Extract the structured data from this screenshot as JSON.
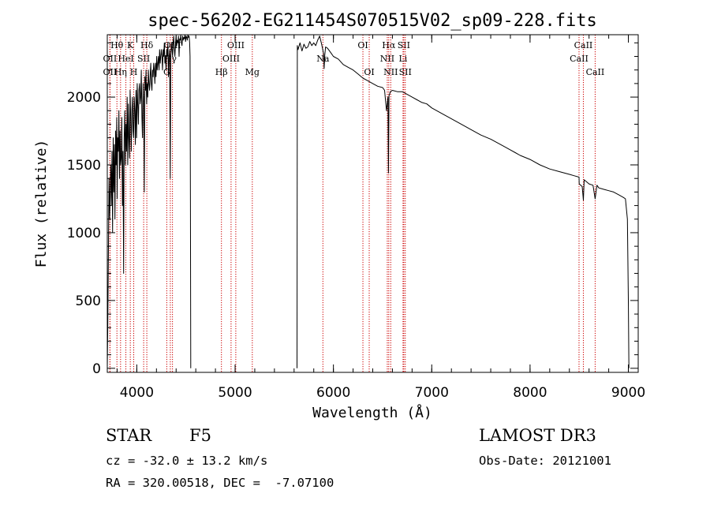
{
  "chart_data": {
    "type": "line",
    "title": "spec-56202-EG211454S070515V02_sp09-228.fits",
    "xlabel": "Wavelength (Å)",
    "ylabel": "Flux (relative)",
    "xlim": [
      3700,
      9100
    ],
    "ylim": [
      -30,
      2460
    ],
    "x_ticks": [
      4000,
      5000,
      6000,
      7000,
      8000,
      9000
    ],
    "y_ticks": [
      0,
      500,
      1000,
      1500,
      2000
    ],
    "series": [
      {
        "name": "spectrum",
        "segments": [
          {
            "x": [
              3700,
              3705,
              3712,
              3718,
              3724,
              3730,
              3736,
              3742,
              3748,
              3754,
              3760,
              3766,
              3772,
              3778,
              3784,
              3790,
              3796,
              3800,
              3806,
              3812,
              3818,
              3824,
              3830,
              3836,
              3842,
              3848,
              3854,
              3860,
              3866,
              3872,
              3878,
              3884,
              3890,
              3896,
              3902,
              3908,
              3914,
              3920,
              3926,
              3932,
              3938,
              3944,
              3950,
              3956,
              3962,
              3968,
              3974,
              3980,
              3986,
              3992,
              3998,
              4004,
              4010,
              4016,
              4022,
              4028,
              4034,
              4040,
              4046,
              4052,
              4058,
              4064,
              4070,
              4076,
              4082,
              4088,
              4094,
              4100,
              4106,
              4112,
              4118,
              4124,
              4130,
              4136,
              4142,
              4148,
              4154,
              4160,
              4166,
              4172,
              4178,
              4184,
              4190,
              4196,
              4202,
              4208,
              4214,
              4220,
              4226,
              4232,
              4238,
              4244,
              4250,
              4256,
              4262,
              4268,
              4274,
              4280,
              4286,
              4292,
              4298,
              4304,
              4310,
              4316,
              4322,
              4328,
              4334,
              4340,
              4346,
              4352,
              4358,
              4364,
              4370,
              4376,
              4382,
              4388,
              4394,
              4400,
              4406,
              4412,
              4418,
              4424,
              4430,
              4436,
              4442,
              4448,
              4454,
              4460,
              4466,
              4472,
              4478,
              4484,
              4490,
              4496,
              4502,
              4508,
              4514,
              4520,
              4526,
              4532,
              4538,
              4542,
              4546,
              4549
            ],
            "y": [
              0,
              300,
              900,
              1400,
              1100,
              1300,
              1500,
              1200,
              1600,
              1000,
              1700,
              1300,
              1650,
              1100,
              1750,
              1500,
              1850,
              1250,
              1700,
              1600,
              1900,
              1400,
              1750,
              1500,
              1550,
              1850,
              1200,
              1600,
              700,
              1700,
              1900,
              1500,
              1800,
              1600,
              2000,
              1500,
              1950,
              1700,
              1550,
              2050,
              1850,
              1600,
              1900,
              2000,
              1750,
              1700,
              2000,
              1900,
              1650,
              2050,
              1700,
              2100,
              1950,
              1800,
              2050,
              2100,
              1950,
              2000,
              2200,
              1850,
              1700,
              2100,
              2000,
              1300,
              2150,
              2050,
              2200,
              1950,
              2100,
              2000,
              2200,
              2100,
              2050,
              2150,
              2250,
              2100,
              2050,
              2200,
              2150,
              2250,
              2200,
              2100,
              2250,
              2150,
              2300,
              2200,
              2250,
              2300,
              2200,
              2350,
              2250,
              2300,
              2350,
              2300,
              2200,
              2350,
              2300,
              2400,
              2250,
              2300,
              2200,
              2350,
              2300,
              2400,
              2150,
              2300,
              2350,
              1400,
              2300,
              2400,
              2350,
              2300,
              2400,
              2450,
              2350,
              2300,
              2400,
              2450,
              2380,
              2420,
              2400,
              2450,
              2300,
              2430,
              2420,
              2460,
              2400,
              2380,
              2450,
              2420,
              2440,
              2430,
              2460,
              2410,
              2450,
              2440,
              2420,
              2460,
              2440,
              2450,
              2400,
              2300,
              1200,
              0
            ]
          },
          {
            "x": [
              5630,
              5633,
              5640,
              5660,
              5680,
              5700,
              5720,
              5740,
              5760,
              5780,
              5800,
              5820,
              5840,
              5860,
              5880,
              5900,
              5906,
              5912,
              5920,
              5940,
              5960,
              5980,
              6000,
              6050,
              6100,
              6150,
              6200,
              6250,
              6300,
              6350,
              6400,
              6450,
              6500,
              6520,
              6540,
              6555,
              6560,
              6565,
              6580,
              6600,
              6650,
              6700,
              6750,
              6800,
              6850,
              6900,
              6950,
              7000,
              7100,
              7200,
              7300,
              7400,
              7500,
              7600,
              7700,
              7800,
              7850,
              7900,
              8000,
              8100,
              8200,
              8300,
              8400,
              8450,
              8498,
              8500,
              8530,
              8542,
              8550,
              8600,
              8640,
              8662,
              8680,
              8700,
              8750,
              8800,
              8850,
              8900,
              8950,
              8970,
              8990,
              9000,
              9005
            ],
            "y": [
              0,
              2380,
              2350,
              2400,
              2340,
              2390,
              2360,
              2370,
              2410,
              2380,
              2400,
              2380,
              2420,
              2450,
              2390,
              2320,
              2210,
              2310,
              2370,
              2360,
              2340,
              2320,
              2300,
              2280,
              2240,
              2220,
              2200,
              2170,
              2140,
              2120,
              2100,
              2080,
              2070,
              2050,
              1900,
              2000,
              1440,
              2010,
              2040,
              2050,
              2040,
              2040,
              2020,
              2000,
              1980,
              1960,
              1950,
              1920,
              1880,
              1840,
              1800,
              1760,
              1720,
              1690,
              1650,
              1610,
              1590,
              1570,
              1540,
              1500,
              1470,
              1450,
              1430,
              1420,
              1410,
              1360,
              1340,
              1240,
              1390,
              1360,
              1350,
              1250,
              1350,
              1330,
              1320,
              1310,
              1300,
              1280,
              1260,
              1250,
              1100,
              500,
              0
            ]
          }
        ]
      }
    ],
    "line_markers": [
      {
        "label": "Hθ",
        "x": 3798,
        "row": 1
      },
      {
        "label": "K",
        "x": 3934,
        "row": 1
      },
      {
        "label": "Hδ",
        "x": 4102,
        "row": 1
      },
      {
        "label": "OII",
        "x": 3727,
        "row": 2
      },
      {
        "label": "HeI",
        "x": 3889,
        "row": 2
      },
      {
        "label": "SII",
        "x": 4070,
        "row": 2
      },
      {
        "label": "OII",
        "x": 3727,
        "row": 3
      },
      {
        "label": "Hη",
        "x": 3835,
        "row": 3
      },
      {
        "label": "H",
        "x": 3969,
        "row": 3
      },
      {
        "label": "OIII",
        "x": 4363,
        "row": 1
      },
      {
        "label": "Hγ",
        "x": 4341,
        "row": 2
      },
      {
        "label": "G",
        "x": 4305,
        "row": 3
      },
      {
        "label": "OIII",
        "x": 5007,
        "row": 1
      },
      {
        "label": "OIII",
        "x": 4959,
        "row": 2
      },
      {
        "label": "Hβ",
        "x": 4861,
        "row": 3
      },
      {
        "label": "Mg",
        "x": 5175,
        "row": 3
      },
      {
        "label": "Na",
        "x": 5893,
        "row": 2
      },
      {
        "label": "OI",
        "x": 6300,
        "row": 1
      },
      {
        "label": "OI",
        "x": 6364,
        "row": 3
      },
      {
        "label": "Hα",
        "x": 6563,
        "row": 1
      },
      {
        "label": "SII",
        "x": 6716,
        "row": 1
      },
      {
        "label": "NII",
        "x": 6548,
        "row": 2
      },
      {
        "label": "Li",
        "x": 6708,
        "row": 2
      },
      {
        "label": "NII",
        "x": 6583,
        "row": 3
      },
      {
        "label": "SII",
        "x": 6731,
        "row": 3
      },
      {
        "label": "CaII",
        "x": 8542,
        "row": 1
      },
      {
        "label": "CaII",
        "x": 8498,
        "row": 2
      },
      {
        "label": "CaII",
        "x": 8662,
        "row": 3
      }
    ],
    "marker_color": "#cc0000",
    "line_color": "#000000"
  },
  "info": {
    "object_class": "STAR",
    "subclass": "F5",
    "redshift_text": "cz = -32.0 ± 13.2 km/s",
    "coords_text": "RA = 320.00518, DEC =  -7.07100",
    "survey": "LAMOST DR3",
    "obs_date": "Obs-Date: 20121001"
  }
}
